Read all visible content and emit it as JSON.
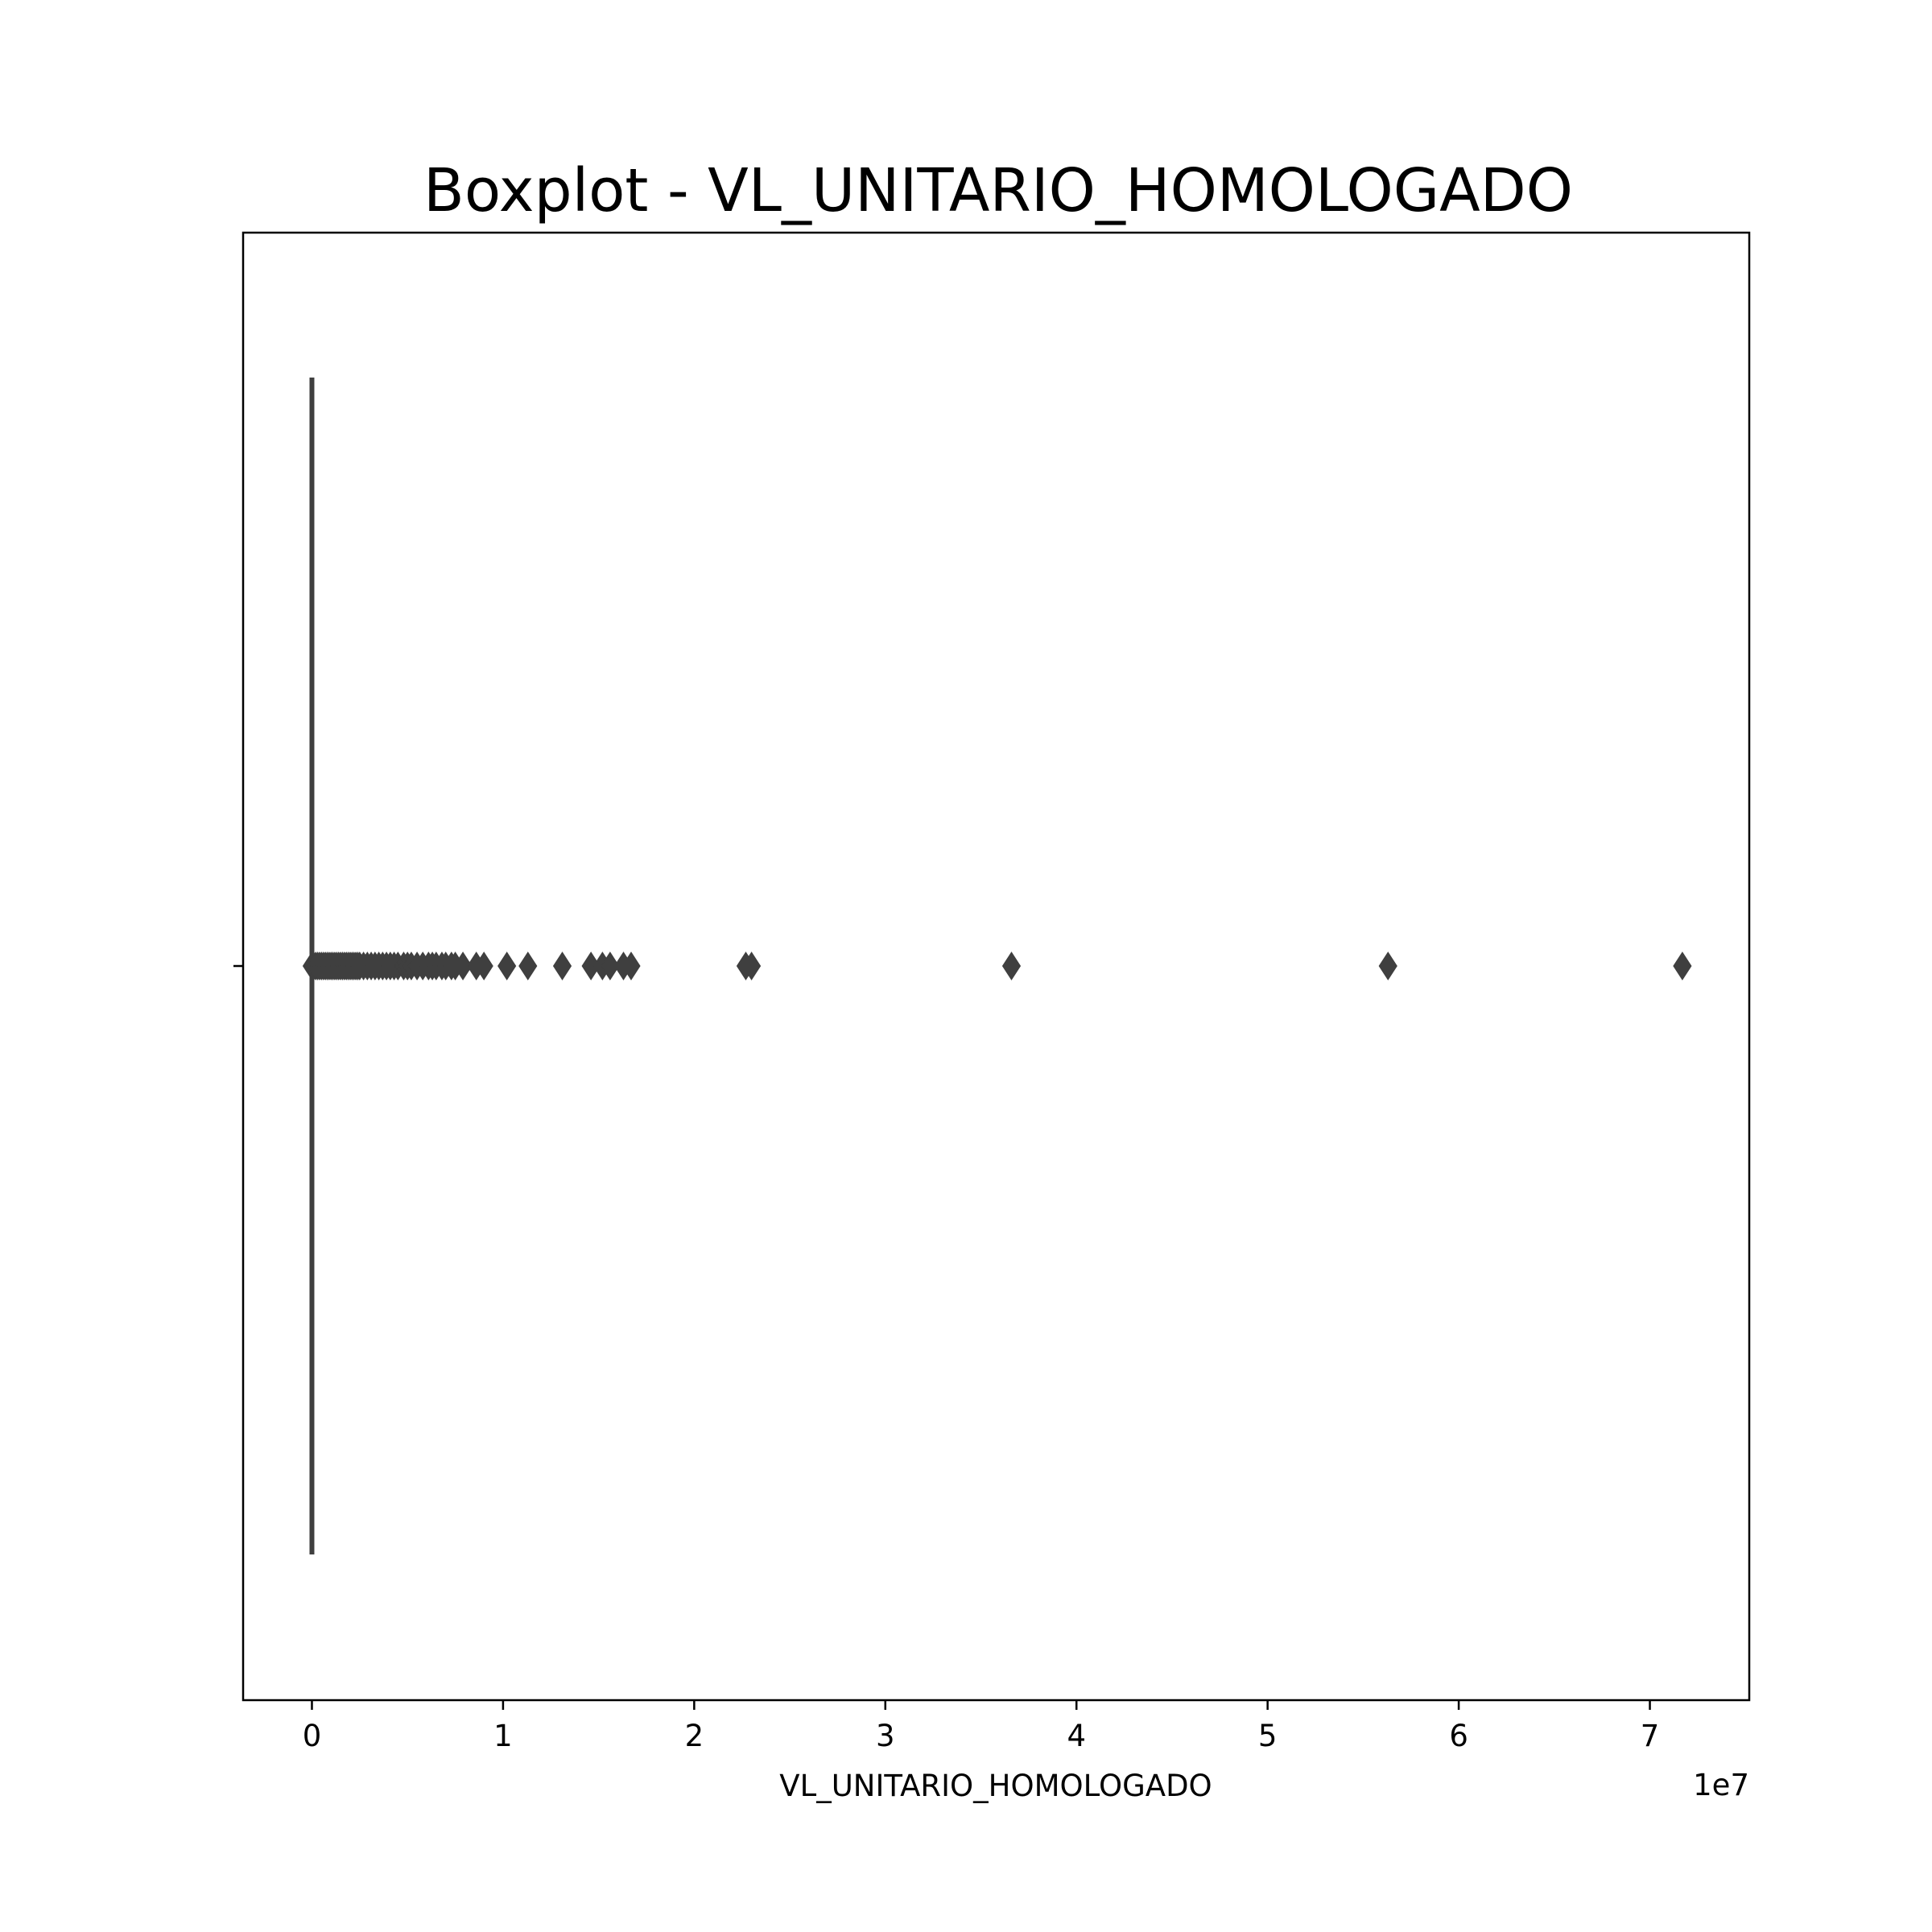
{
  "chart_data": {
    "type": "boxplot",
    "orientation": "horizontal",
    "title": "Boxplot - VL_UNITARIO_HOMOLOGADO",
    "xlabel": "VL_UNITARIO_HOMOLOGADO",
    "ylabel": "",
    "x_offset_label": "1e7",
    "x_tick_labels": [
      "0",
      "1",
      "2",
      "3",
      "4",
      "5",
      "6",
      "7"
    ],
    "x_ticks": [
      0,
      1,
      2,
      3,
      4,
      5,
      6,
      7
    ],
    "xlim": [
      -0.36,
      7.52
    ],
    "grid": false,
    "color": "#3f3f3f",
    "box": {
      "q1": 0.0,
      "median": 0.0,
      "q3": 0.0,
      "whisker_low": 0.0,
      "whisker_high": 0.0
    },
    "outliers": [
      0.0,
      0.01,
      0.02,
      0.03,
      0.04,
      0.05,
      0.06,
      0.07,
      0.08,
      0.09,
      0.1,
      0.11,
      0.12,
      0.13,
      0.14,
      0.15,
      0.16,
      0.17,
      0.18,
      0.19,
      0.2,
      0.21,
      0.22,
      0.23,
      0.24,
      0.25,
      0.27,
      0.29,
      0.31,
      0.33,
      0.35,
      0.37,
      0.39,
      0.41,
      0.43,
      0.45,
      0.48,
      0.5,
      0.52,
      0.55,
      0.58,
      0.61,
      0.63,
      0.65,
      0.68,
      0.7,
      0.73,
      0.75,
      0.79,
      0.86,
      0.9,
      1.02,
      1.13,
      1.31,
      1.46,
      1.52,
      1.56,
      1.63,
      1.67,
      2.27,
      2.3,
      3.66,
      5.63,
      7.17
    ]
  }
}
